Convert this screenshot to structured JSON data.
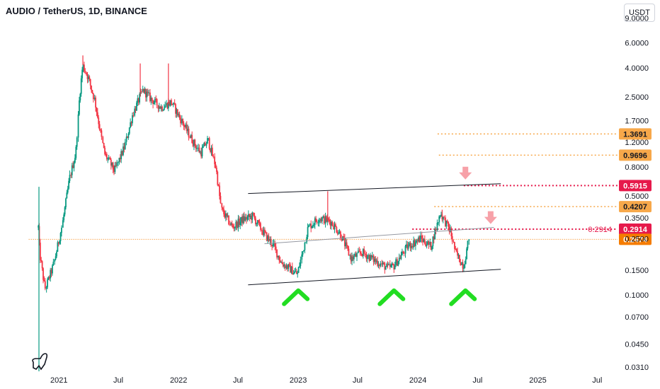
{
  "header": {
    "title": "AUDIO / TetherUS, 1D, BINANCE",
    "currency_button": "USDT"
  },
  "colors": {
    "up": "#089981",
    "down": "#f23645",
    "orange_tag": "#f7a84a",
    "red_tag": "#e6194b",
    "last_price_tag": "#f57c00",
    "channel": "#131722",
    "arrow_green": "#22dd22",
    "arrow_pink": "#f7a1a8"
  },
  "chart_data": {
    "type": "candlestick",
    "scale": "log",
    "ylim": [
      0.028,
      10.5
    ],
    "xlim": [
      "2020-11-01",
      "2025-09-01"
    ],
    "x_ticks": [
      {
        "date": "2021-01-01",
        "label": "2021"
      },
      {
        "date": "2021-07-01",
        "label": "Jul"
      },
      {
        "date": "2022-01-01",
        "label": "2022"
      },
      {
        "date": "2022-07-01",
        "label": "Jul"
      },
      {
        "date": "2023-01-01",
        "label": "2023"
      },
      {
        "date": "2023-07-01",
        "label": "Jul"
      },
      {
        "date": "2024-01-01",
        "label": "2024"
      },
      {
        "date": "2024-07-01",
        "label": "Jul"
      },
      {
        "date": "2025-01-01",
        "label": "2025"
      },
      {
        "date": "2025-07-01",
        "label": "Jul"
      }
    ],
    "y_ticks": [
      "9.0000",
      "6.0000",
      "4.0000",
      "2.5000",
      "1.7000",
      "1.2000",
      "0.8000",
      "0.5000",
      "0.3500",
      "0.2500",
      "0.1500",
      "0.1000",
      "0.0700",
      "0.0450",
      "0.0310"
    ],
    "price_path": [
      [
        "2020-10-30",
        0.3
      ],
      [
        "2020-11-03",
        0.2
      ],
      [
        "2020-11-20",
        0.11
      ],
      [
        "2020-12-15",
        0.16
      ],
      [
        "2021-01-10",
        0.3
      ],
      [
        "2021-02-05",
        0.7
      ],
      [
        "2021-02-22",
        1.0
      ],
      [
        "2021-03-05",
        2.5
      ],
      [
        "2021-03-15",
        4.2
      ],
      [
        "2021-04-01",
        3.4
      ],
      [
        "2021-04-20",
        2.4
      ],
      [
        "2021-05-20",
        1.0
      ],
      [
        "2021-06-20",
        0.75
      ],
      [
        "2021-07-20",
        1.1
      ],
      [
        "2021-08-15",
        1.9
      ],
      [
        "2021-09-15",
        2.8
      ],
      [
        "2021-10-10",
        2.4
      ],
      [
        "2021-11-10",
        2.1
      ],
      [
        "2021-12-10",
        2.3
      ],
      [
        "2022-01-10",
        1.7
      ],
      [
        "2022-02-15",
        1.2
      ],
      [
        "2022-03-10",
        1.0
      ],
      [
        "2022-04-01",
        1.25
      ],
      [
        "2022-04-25",
        0.8
      ],
      [
        "2022-05-12",
        0.4
      ],
      [
        "2022-06-15",
        0.3
      ],
      [
        "2022-07-15",
        0.34
      ],
      [
        "2022-08-15",
        0.36
      ],
      [
        "2022-09-20",
        0.27
      ],
      [
        "2022-10-20",
        0.22
      ],
      [
        "2022-11-10",
        0.17
      ],
      [
        "2022-12-30",
        0.14
      ],
      [
        "2023-02-01",
        0.3
      ],
      [
        "2023-03-05",
        0.35
      ],
      [
        "2023-04-10",
        0.33
      ],
      [
        "2023-05-10",
        0.27
      ],
      [
        "2023-06-12",
        0.18
      ],
      [
        "2023-07-15",
        0.2
      ],
      [
        "2023-08-15",
        0.18
      ],
      [
        "2023-10-01",
        0.155
      ],
      [
        "2023-10-20",
        0.16
      ],
      [
        "2023-12-01",
        0.22
      ],
      [
        "2024-01-10",
        0.25
      ],
      [
        "2024-02-10",
        0.22
      ],
      [
        "2024-03-10",
        0.38
      ],
      [
        "2024-04-10",
        0.28
      ],
      [
        "2024-04-25",
        0.2
      ],
      [
        "2024-05-20",
        0.16
      ],
      [
        "2024-06-05",
        0.2474
      ]
    ],
    "spikes": [
      {
        "date": "2020-11-01",
        "high": 0.58,
        "low": 0.029
      },
      {
        "date": "2021-03-15",
        "high": 4.9
      },
      {
        "date": "2021-09-06",
        "high": 4.3
      },
      {
        "date": "2021-12-01",
        "high": 4.3
      },
      {
        "date": "2023-04-01",
        "high": 0.54
      },
      {
        "date": "2024-03-15",
        "high": 0.4
      }
    ],
    "channel": {
      "upper": [
        [
          "2022-08-01",
          0.52
        ],
        [
          "2024-09-10",
          0.61
        ]
      ],
      "mid": [
        [
          "2022-09-20",
          0.23
        ],
        [
          "2024-08-20",
          0.3
        ]
      ],
      "lower": [
        [
          "2022-08-01",
          0.118
        ],
        [
          "2024-09-10",
          0.152
        ]
      ]
    },
    "levels": [
      {
        "label": "1.3691",
        "value": 1.3691,
        "kind": "orange",
        "from": "2024-03-01"
      },
      {
        "label": "0.9696",
        "value": 0.9696,
        "kind": "orange",
        "from": "2024-03-05"
      },
      {
        "label": "0.5915",
        "value": 0.5915,
        "kind": "red",
        "from": "2024-05-20"
      },
      {
        "label": "0.4207",
        "value": 0.4207,
        "kind": "orange",
        "from": "2024-02-20"
      },
      {
        "label": "0.2914",
        "value": 0.2914,
        "kind": "red",
        "from": "2023-12-15",
        "inline_label": "0.2914"
      },
      {
        "label": "0.2474",
        "value": 0.2474,
        "kind": "last",
        "from": "2020-10-01"
      }
    ],
    "bounce_markers": [
      "2023-01-01",
      "2023-10-20",
      "2024-05-25"
    ],
    "drop_markers": [
      {
        "date": "2024-05-25",
        "value": 0.7
      },
      {
        "date": "2024-08-10",
        "value": 0.34
      }
    ]
  }
}
